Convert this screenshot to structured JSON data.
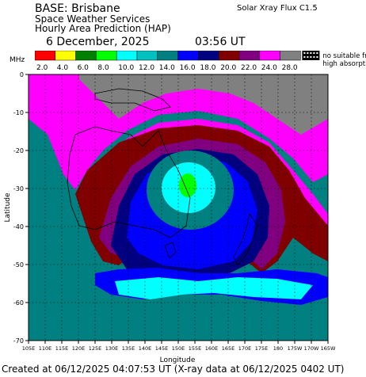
{
  "header": {
    "base": "BASE: Brisbane",
    "service": "Space Weather Services",
    "product": "Hourly Area Prediction (HAP)",
    "date": "6 December, 2025",
    "time": "03:56 UT",
    "flux": "Solar Xray Flux C1.5"
  },
  "legend": {
    "unit": "MHz",
    "labels": [
      "2.0",
      "4.0",
      "6.0",
      "8.0",
      "10.0",
      "12.0",
      "14.0",
      "16.0",
      "18.0",
      "20.0",
      "22.0",
      "24.0",
      "28.0"
    ],
    "colors": [
      "#ff0000",
      "#ffff00",
      "#008000",
      "#00ff00",
      "#00ffff",
      "#00c0c0",
      "#008080",
      "#0000ff",
      "#000080",
      "#800000",
      "#800080",
      "#ff00ff",
      "#808080"
    ],
    "no_data_label_1": "no suitable freq or",
    "no_data_label_2": "high absorption"
  },
  "map": {
    "ylabel": "Latitude",
    "xlabel": "Longitude",
    "lat_ticks": [
      "0",
      "-10",
      "-20",
      "-30",
      "-40",
      "-50",
      "-60",
      "-70"
    ],
    "lon_ticks": [
      "105E",
      "110E",
      "115E",
      "120E",
      "125E",
      "130E",
      "135E",
      "140E",
      "145E",
      "150E",
      "155E",
      "160E",
      "165E",
      "170E",
      "175E",
      "180",
      "175W",
      "170W",
      "165W"
    ]
  },
  "footer": "Created at 06/12/2025 04:07:53 UT (X-ray data at 06/12/2025 0402 UT)"
}
